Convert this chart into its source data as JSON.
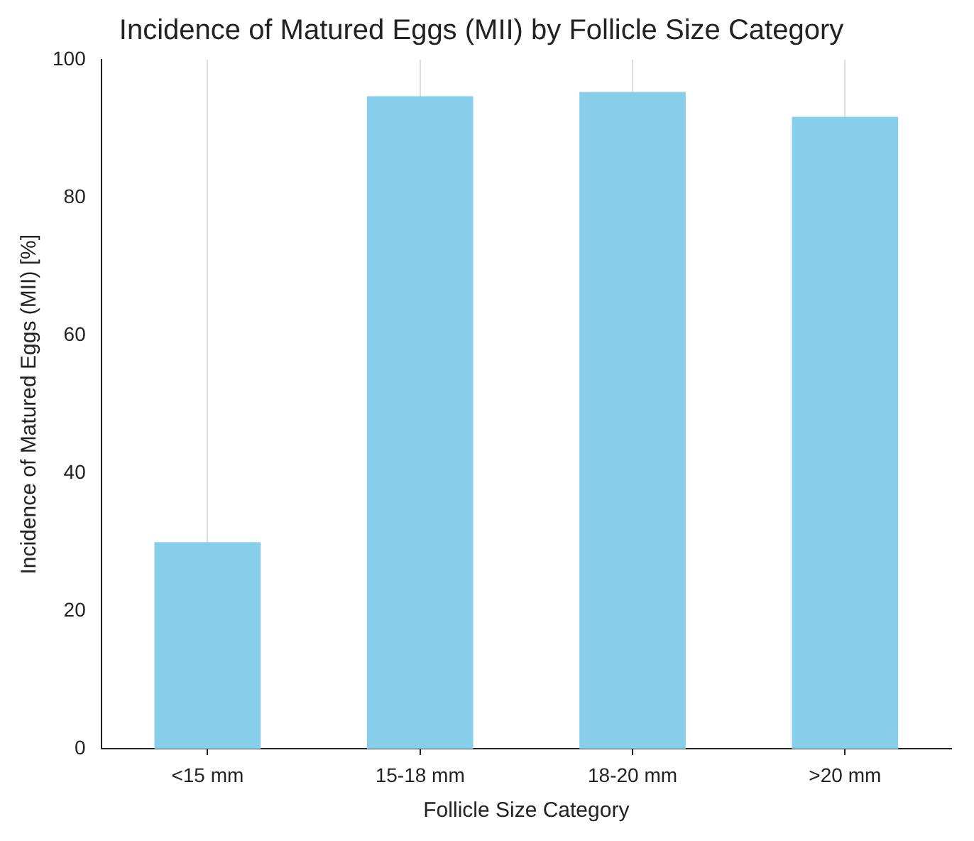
{
  "chart_data": {
    "type": "bar",
    "title": "Incidence of Matured Eggs (MII) by Follicle Size Category",
    "xlabel": "Follicle Size Category",
    "ylabel": "Incidence of Matured Eggs (MII) [%]",
    "categories": [
      "<15 mm",
      "15-18 mm",
      "18-20 mm",
      ">20 mm"
    ],
    "values": [
      30,
      94.7,
      95.3,
      91.7
    ],
    "color": "#87ceeb",
    "ylim": [
      0,
      100
    ],
    "yticks": [
      0,
      20,
      40,
      60,
      80,
      100
    ],
    "grid": "x"
  }
}
